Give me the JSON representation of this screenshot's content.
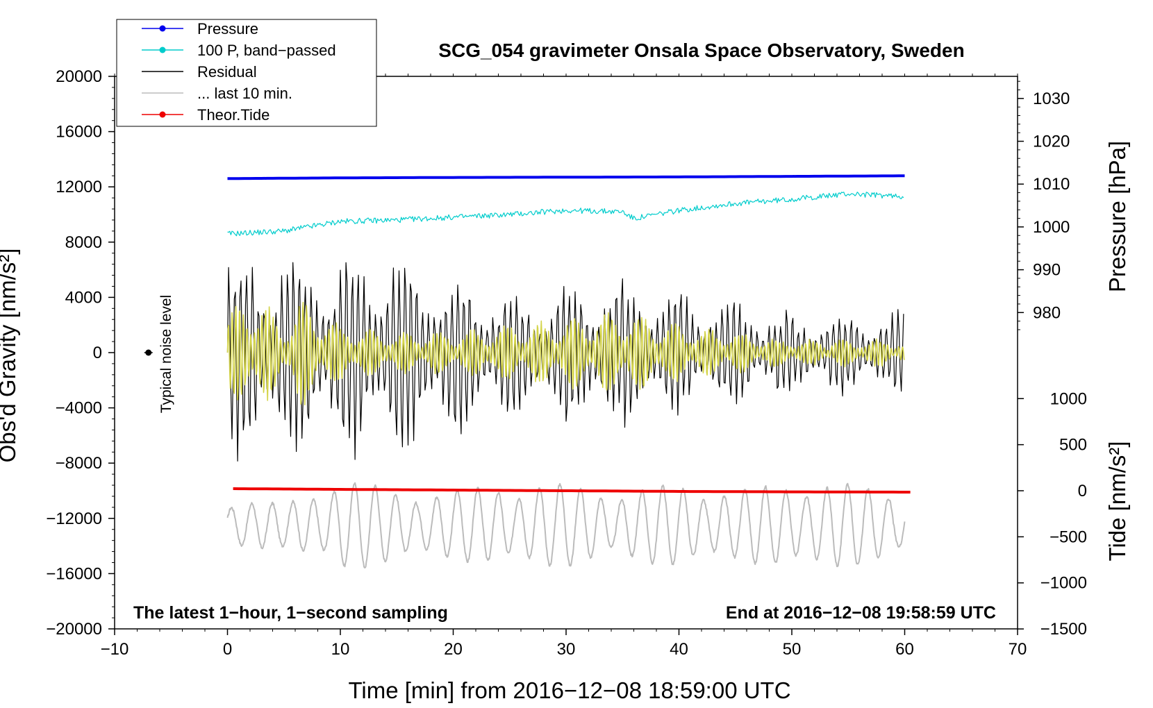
{
  "chart_data": {
    "type": "line",
    "title": "SCG_054 gravimeter Onsala Space Observatory, Sweden",
    "xlabel": "Time [min] from 2016−12−08 18:59:00 UTC",
    "ylabel_left": "Obs'd Gravity [nm/s²]",
    "ylabel_right_pressure": "Pressure [hPa]",
    "ylabel_right_tide": "Tide [nm/s²]",
    "xlim": [
      -10,
      70
    ],
    "ylim_left": [
      -20000,
      20000
    ],
    "x_ticks": [
      {
        "value": -10,
        "label": "−10"
      },
      {
        "value": 0,
        "label": "0"
      },
      {
        "value": 10,
        "label": "10"
      },
      {
        "value": 20,
        "label": "20"
      },
      {
        "value": 30,
        "label": "30"
      },
      {
        "value": 40,
        "label": "40"
      },
      {
        "value": 50,
        "label": "50"
      },
      {
        "value": 60,
        "label": "60"
      },
      {
        "value": 70,
        "label": "70"
      }
    ],
    "y_left_ticks": [
      {
        "value": 20000,
        "label": "20000"
      },
      {
        "value": 16000,
        "label": "16000"
      },
      {
        "value": 12000,
        "label": "12000"
      },
      {
        "value": 8000,
        "label": "8000"
      },
      {
        "value": 4000,
        "label": "4000"
      },
      {
        "value": 0,
        "label": "0"
      },
      {
        "value": -4000,
        "label": "−4000"
      },
      {
        "value": -8000,
        "label": "−8000"
      },
      {
        "value": -12000,
        "label": "−12000"
      },
      {
        "value": -16000,
        "label": "−16000"
      },
      {
        "value": -20000,
        "label": "−20000"
      }
    ],
    "pressure_axis": {
      "ref_value_hpa": 1030,
      "ref_gravity": 18400,
      "gravity_per_hpa": 310,
      "ticks": [
        {
          "value": 1030,
          "label": "1030"
        },
        {
          "value": 1020,
          "label": "1020"
        },
        {
          "value": 1010,
          "label": "1010"
        },
        {
          "value": 1000,
          "label": "1000"
        },
        {
          "value": 990,
          "label": "990"
        },
        {
          "value": 980,
          "label": "980"
        }
      ]
    },
    "tide_axis": {
      "ref_value": 0,
      "ref_gravity": -10000,
      "gravity_per_unit": 6.67,
      "ticks": [
        {
          "value": 1000,
          "label": "1000"
        },
        {
          "value": 500,
          "label": "500"
        },
        {
          "value": 0,
          "label": "0"
        },
        {
          "value": -500,
          "label": "−500"
        },
        {
          "value": -1000,
          "label": "−1000"
        },
        {
          "value": -1500,
          "label": "−1500"
        }
      ]
    },
    "series": [
      {
        "name": "Pressure",
        "color": "#0000ee",
        "x": [
          0,
          10,
          20,
          30,
          40,
          50,
          60
        ],
        "y": [
          12600,
          12650,
          12680,
          12700,
          12720,
          12760,
          12800
        ]
      },
      {
        "name": "100 P, band−passed",
        "color": "#00cccc",
        "x": [
          0,
          5,
          10,
          15,
          20,
          25,
          30,
          35,
          36,
          40,
          45,
          50,
          55,
          60
        ],
        "y": [
          8600,
          8800,
          9500,
          9600,
          9800,
          10000,
          10300,
          10200,
          9700,
          10300,
          10800,
          11100,
          11500,
          11300
        ]
      },
      {
        "name": "Residual",
        "color": "#000000",
        "x": [
          0,
          5,
          10,
          15,
          20,
          25,
          30,
          35,
          40,
          45,
          50,
          55,
          60
        ],
        "amplitude": [
          9000,
          8500,
          8500,
          8500,
          6500,
          5500,
          6000,
          6000,
          5000,
          4500,
          3500,
          3500,
          3500
        ]
      },
      {
        "name": "... last 10 min.",
        "color": "#bbbbbb",
        "x": [
          0,
          5,
          10,
          15,
          20,
          25,
          30,
          35,
          40,
          45,
          50,
          55,
          60
        ],
        "y_center": [
          -12500,
          -12500,
          -12500,
          -12500,
          -12500,
          -12500,
          -12500,
          -12500,
          -12500,
          -12500,
          -12500,
          -12500,
          -12500
        ],
        "amplitude": [
          2000,
          1500,
          3500,
          2500,
          2500,
          3000,
          3000,
          2500,
          3000,
          2500,
          3200,
          3000,
          2500
        ]
      },
      {
        "name": "Theor.Tide",
        "color": "#ee0000",
        "x": [
          0.5,
          10,
          20,
          30,
          40,
          50,
          60.5
        ],
        "y": [
          -9850,
          -9900,
          -9950,
          -10000,
          -10050,
          -10080,
          -10100
        ]
      },
      {
        "name": "band-passed residual",
        "color": "#d4d44a",
        "x": [
          0,
          2.5,
          5,
          6.5,
          10,
          15,
          20,
          25,
          30,
          35,
          40,
          45,
          50,
          55,
          60
        ],
        "amplitude": [
          3000,
          4500,
          2000,
          4000,
          2000,
          1500,
          1500,
          2000,
          2500,
          3000,
          2000,
          1500,
          800,
          1000,
          900
        ]
      }
    ],
    "annotations": {
      "left_bottom": "The latest 1−hour, 1−second sampling",
      "right_bottom": "End at 2016−12−08 19:58:59 UTC",
      "noise_label": "Typical noise level",
      "noise_point": {
        "x": -7,
        "y": 0
      }
    },
    "legend": {
      "placement": "top-left",
      "entries": [
        {
          "label": "Pressure",
          "color": "#0000ee",
          "marker": true
        },
        {
          "label": "100 P, band−passed",
          "color": "#00cccc",
          "marker": true
        },
        {
          "label": "Residual",
          "color": "#000000",
          "marker": false
        },
        {
          "label": "... last 10 min.",
          "color": "#bbbbbb",
          "marker": false
        },
        {
          "label": "Theor.Tide",
          "color": "#ee0000",
          "marker": true
        }
      ]
    }
  }
}
